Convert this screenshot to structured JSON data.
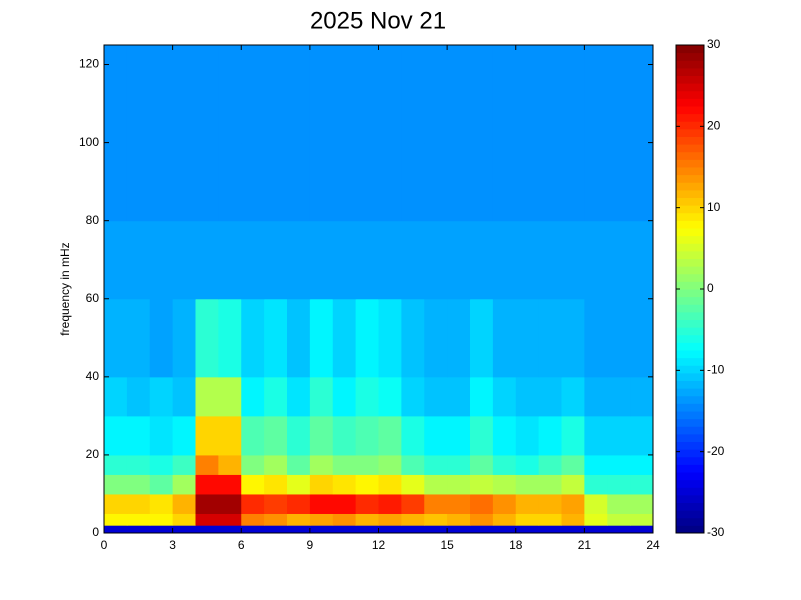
{
  "chart_data": {
    "type": "heatmap",
    "title": "2025 Nov 21",
    "y_label": "frequency in mHz",
    "xlim": [
      0,
      24
    ],
    "xticks": [
      0,
      3,
      6,
      9,
      12,
      15,
      18,
      21,
      24
    ],
    "ylim": [
      0,
      125
    ],
    "yticks": [
      0,
      20,
      40,
      60,
      80,
      100,
      120
    ],
    "colormap": "jet",
    "clim": [
      -30,
      30
    ],
    "cticks": [
      -30,
      -20,
      -10,
      0,
      10,
      20,
      30
    ],
    "xbins": [
      0,
      1,
      2,
      3,
      4,
      5,
      6,
      7,
      8,
      9,
      10,
      11,
      12,
      13,
      14,
      15,
      16,
      17,
      18,
      19,
      20,
      21,
      22,
      23,
      24
    ],
    "ybins": [
      0,
      2,
      5,
      10,
      15,
      20,
      30,
      40,
      60,
      80,
      100,
      125
    ],
    "values": [
      [
        -25,
        -25,
        -25,
        -25,
        -25,
        -25,
        -25,
        -25,
        -25,
        -25,
        -25,
        -25,
        -25,
        -25,
        -25,
        -25,
        -25,
        -25,
        -25,
        -25,
        -25,
        -25,
        -25,
        -25
      ],
      [
        8,
        8,
        8,
        10,
        25,
        25,
        15,
        14,
        12,
        13,
        14,
        12,
        13,
        12,
        11,
        12,
        14,
        12,
        10,
        10,
        12,
        6,
        4,
        4
      ],
      [
        10,
        10,
        9,
        12,
        28,
        28,
        20,
        19,
        20,
        22,
        22,
        20,
        21,
        19,
        15,
        15,
        16,
        14,
        12,
        12,
        13,
        5,
        2,
        2
      ],
      [
        0,
        0,
        -2,
        2,
        22,
        22,
        8,
        9,
        6,
        10,
        9,
        8,
        9,
        6,
        3,
        3,
        4,
        3,
        2,
        2,
        4,
        -5,
        -5,
        -5
      ],
      [
        -5,
        -5,
        -6,
        -4,
        15,
        12,
        0,
        2,
        -2,
        2,
        0,
        0,
        1,
        -3,
        -5,
        -5,
        -2,
        -5,
        -6,
        -4,
        -2,
        -8,
        -8,
        -8
      ],
      [
        -8,
        -8,
        -9,
        -8,
        10,
        10,
        -3,
        -2,
        -5,
        -2,
        -4,
        -3,
        -2,
        -6,
        -8,
        -8,
        -5,
        -8,
        -9,
        -8,
        -6,
        -10,
        -10,
        -10
      ],
      [
        -10,
        -11,
        -10,
        -11,
        3,
        3,
        -8,
        -6,
        -9,
        -5,
        -8,
        -6,
        -7,
        -10,
        -11,
        -11,
        -8,
        -10,
        -11,
        -11,
        -10,
        -12,
        -12,
        -12
      ],
      [
        -12,
        -12,
        -13,
        -12,
        -5,
        -6,
        -10,
        -9,
        -11,
        -8,
        -10,
        -8,
        -9,
        -11,
        -12,
        -12,
        -10,
        -12,
        -12,
        -12,
        -12,
        -13,
        -13,
        -13
      ],
      [
        -13,
        -13,
        -13,
        -13,
        -13,
        -13,
        -13,
        -13,
        -13,
        -13,
        -13,
        -13,
        -13,
        -13,
        -13,
        -13,
        -13,
        -13,
        -13,
        -13,
        -13,
        -13,
        -13,
        -13
      ],
      [
        -14,
        -14,
        -14,
        -14,
        -14,
        -14,
        -14,
        -14,
        -14,
        -14,
        -14,
        -14,
        -14,
        -14,
        -14,
        -14,
        -14,
        -14,
        -14,
        -14,
        -14,
        -14,
        -14,
        -14
      ],
      [
        -14,
        -14,
        -14,
        -14,
        -14,
        -14,
        -14,
        -14,
        -14,
        -14,
        -14,
        -14,
        -14,
        -14,
        -14,
        -14,
        -14,
        -14,
        -14,
        -14,
        -14,
        -14,
        -14,
        -14
      ]
    ]
  }
}
